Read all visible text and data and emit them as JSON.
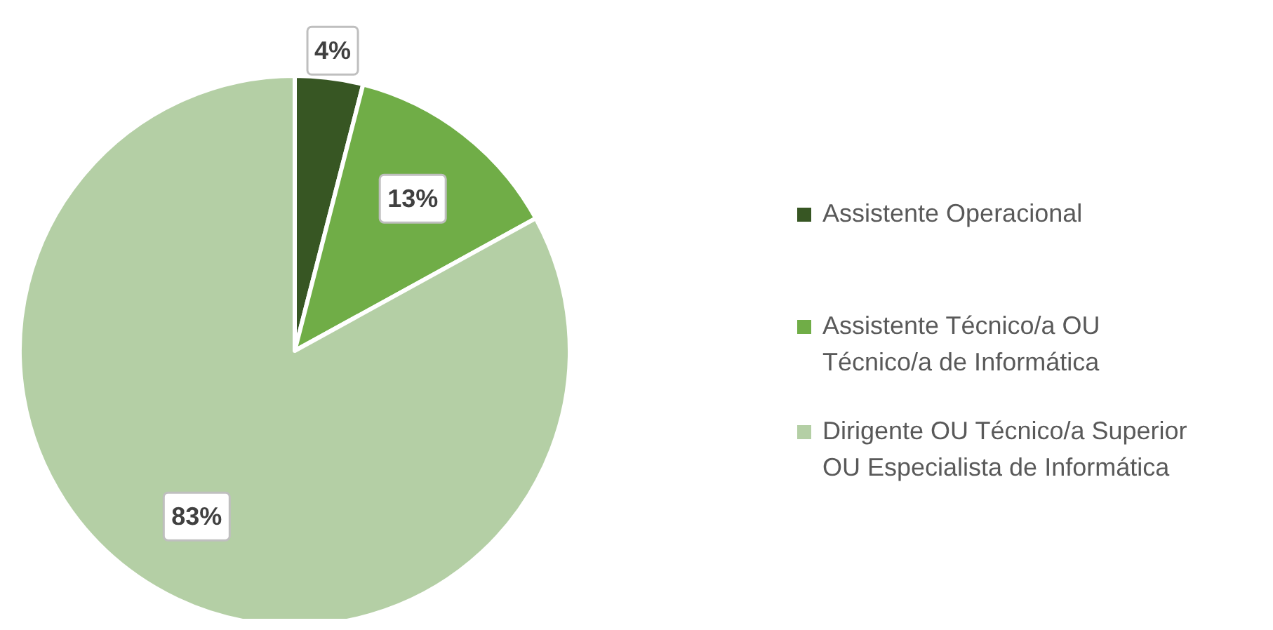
{
  "chart_data": {
    "type": "pie",
    "categories": [
      "Assistente Operacional",
      "Assistente Técnico/a OU Técnico/a de Informática",
      "Dirigente OU Técnico/a Superior OU Especialista de Informática"
    ],
    "values": [
      4,
      13,
      83
    ],
    "colors": [
      "#375623",
      "#70ad47",
      "#b4cfa5"
    ],
    "value_labels": [
      "4%",
      "13%",
      "83%"
    ],
    "legend": "right"
  }
}
